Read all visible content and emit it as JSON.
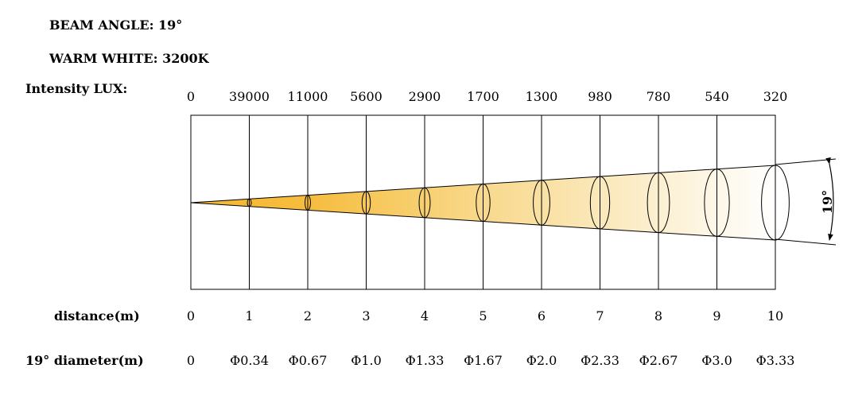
{
  "header": {
    "beam_angle_label": "BEAM ANGLE: 19°",
    "color_temp_label": "WARM WHITE: 3200K",
    "intensity_label": "Intensity LUX:"
  },
  "beam": {
    "angle_label": "19°",
    "colors": {
      "start": "#f5b731",
      "end": "#ffffff",
      "line": "#000000"
    }
  },
  "rows": {
    "distance_label": "distance(m)",
    "diameter_label": "19° diameter(m)"
  },
  "chart_data": {
    "type": "table",
    "title": "",
    "distance_m": [
      0,
      1,
      2,
      3,
      4,
      5,
      6,
      7,
      8,
      9,
      10
    ],
    "lux": [
      0,
      39000,
      11000,
      5600,
      2900,
      1700,
      1300,
      980,
      780,
      540,
      320
    ],
    "diameter": [
      "0",
      "Φ0.34",
      "Φ0.67",
      "Φ1.0",
      "Φ1.33",
      "Φ1.67",
      "Φ2.0",
      "Φ2.33",
      "Φ2.67",
      "Φ3.0",
      "Φ3.33"
    ],
    "diameter_m": [
      0,
      0.34,
      0.67,
      1.0,
      1.33,
      1.67,
      2.0,
      2.33,
      2.67,
      3.0,
      3.33
    ]
  }
}
